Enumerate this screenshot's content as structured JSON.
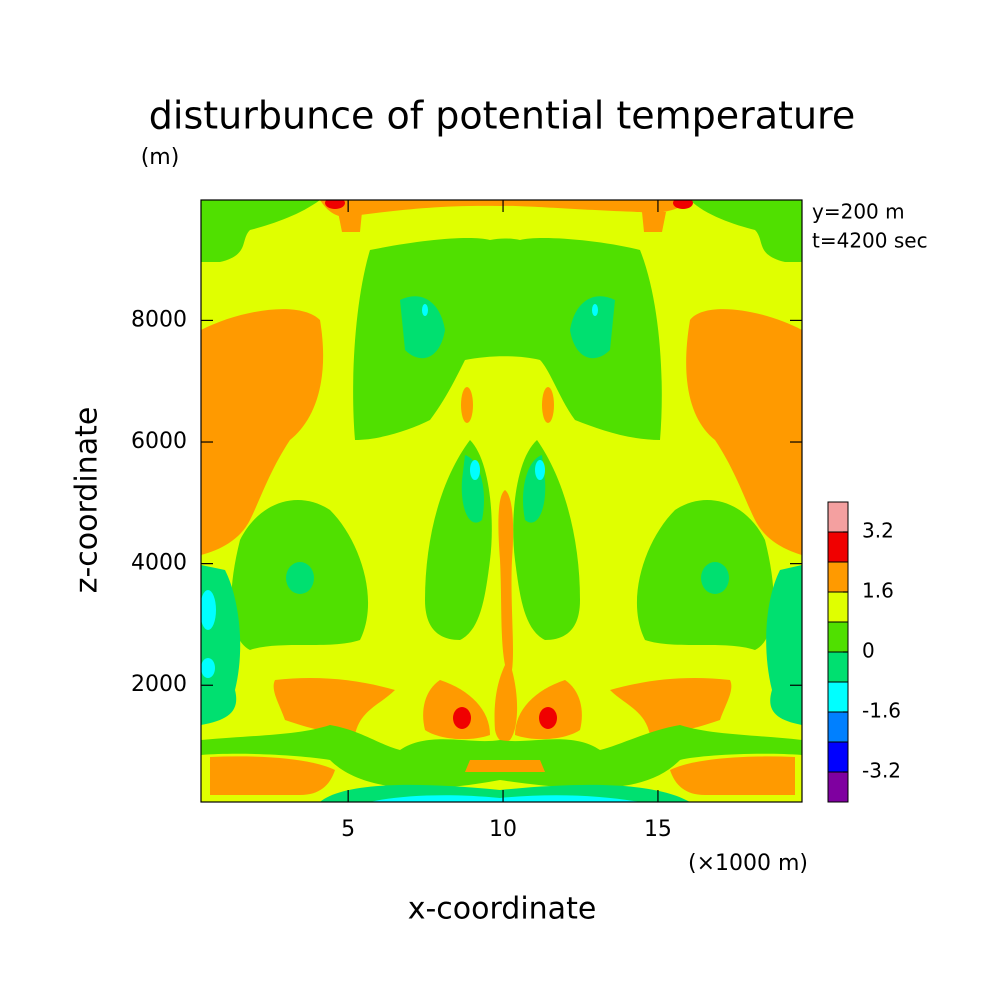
{
  "chart_data": {
    "type": "contour",
    "title": "disturbunce of potential temperature",
    "x_label": "x-coordinate",
    "x_unit": "(×1000 m)",
    "y_label": "z-coordinate",
    "y_unit": "(m)",
    "annotations": [
      "y=200 m",
      "t=4200 sec"
    ],
    "xlim": [
      0.25,
      19.65
    ],
    "xticks": [
      5,
      10,
      15
    ],
    "ylim": [
      80,
      9980
    ],
    "yticks": [
      2000,
      4000,
      6000,
      8000
    ],
    "levels": [
      -3.2,
      -2.4,
      -1.6,
      -0.8,
      0,
      0.8,
      1.6,
      2.4,
      3.2
    ],
    "colors": [
      "#7f00a0",
      "#0000ff",
      "#0080ff",
      "#00ffff",
      "#00e070",
      "#50e000",
      "#e0ff00",
      "#ff9a00",
      "#f00000",
      "#f4a0a0"
    ],
    "clim": [
      -4,
      4
    ],
    "cticks": [
      -3.2,
      -1.6,
      0,
      1.6,
      3.2
    ]
  }
}
